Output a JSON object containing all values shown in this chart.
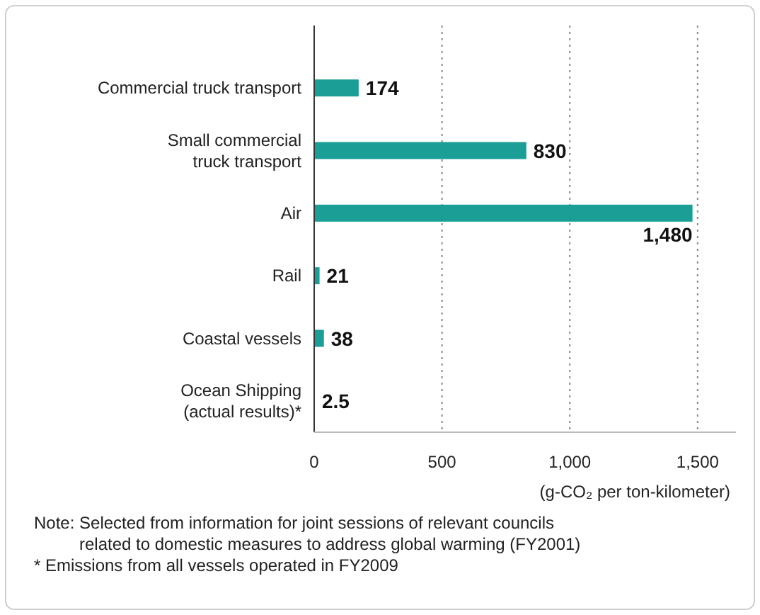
{
  "chart_data": {
    "type": "bar",
    "orientation": "horizontal",
    "categories": [
      "Commercial truck transport",
      "Small commercial truck transport",
      "Air",
      "Rail",
      "Coastal vessels",
      "Ocean Shipping (actual results)*"
    ],
    "values": [
      174,
      830,
      1480,
      21,
      38,
      2.5
    ],
    "value_labels": [
      "174",
      "830",
      "1,480",
      "21",
      "38",
      "2.5"
    ],
    "color": "#1a9e96",
    "xlim": [
      0,
      1650
    ],
    "xticks": [
      0,
      500,
      {
        "value": 1000,
        "label": "1,000"
      },
      {
        "value": 1500,
        "label": "1,500"
      }
    ],
    "xlabel": "(g-CO₂ per ton-kilometer)",
    "grid": "x",
    "annotations": [
      "Note: Selected from information for joint sessions of relevant councils related to domestic measures to address global warming (FY2001)",
      "* Emissions from all vessels operated in FY2009"
    ]
  }
}
